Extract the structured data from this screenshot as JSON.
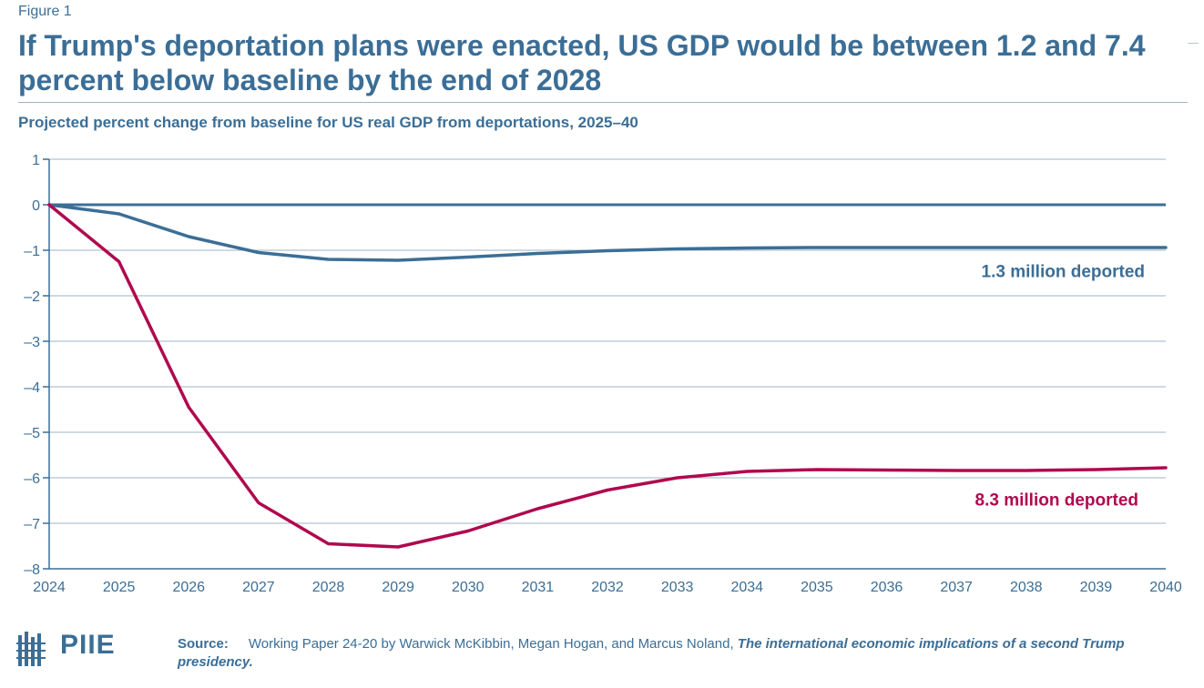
{
  "figure_label": "Figure 1",
  "title": "If Trump's deportation plans were enacted, US GDP would be between 1.2 and 7.4 percent below baseline by the end of 2028",
  "subtitle": "Projected percent change from baseline for US real GDP from deportations, 2025–40",
  "logo": {
    "text": "PIIE",
    "icon": "building-columns-icon"
  },
  "source": {
    "label": "Source:",
    "text": "Working Paper 24-20 by Warwick McKibbin, Megan Hogan, and Marcus Noland,",
    "title": "The international economic implications of a second Trump presidency."
  },
  "colors": {
    "accent": "#3b6e96",
    "series_blue": "#3b6e96",
    "series_red": "#b0084f",
    "grid": "#9fb4c6"
  },
  "chart_data": {
    "type": "line",
    "x": [
      2024,
      2025,
      2026,
      2027,
      2028,
      2029,
      2030,
      2031,
      2032,
      2033,
      2034,
      2035,
      2036,
      2037,
      2038,
      2039,
      2040
    ],
    "ylim": [
      -8,
      1
    ],
    "yticks": [
      1,
      0,
      -1,
      -2,
      -3,
      -4,
      -5,
      -6,
      -7,
      -8
    ],
    "ytick_labels": [
      "1",
      "0",
      "–1",
      "–2",
      "–3",
      "–4",
      "–5",
      "–6",
      "–7",
      "–8"
    ],
    "grid": true,
    "series": [
      {
        "name": "1.3 million deported",
        "color": "#3b6e96",
        "values": [
          0,
          -0.2,
          -0.7,
          -1.05,
          -1.2,
          -1.22,
          -1.15,
          -1.07,
          -1.01,
          -0.97,
          -0.95,
          -0.94,
          -0.94,
          -0.94,
          -0.94,
          -0.94,
          -0.94
        ]
      },
      {
        "name": "8.3 million deported",
        "color": "#b0084f",
        "values": [
          0,
          -1.25,
          -4.45,
          -6.55,
          -7.45,
          -7.52,
          -7.17,
          -6.68,
          -6.27,
          -6.0,
          -5.86,
          -5.82,
          -5.83,
          -5.84,
          -5.84,
          -5.82,
          -5.78
        ]
      }
    ]
  }
}
